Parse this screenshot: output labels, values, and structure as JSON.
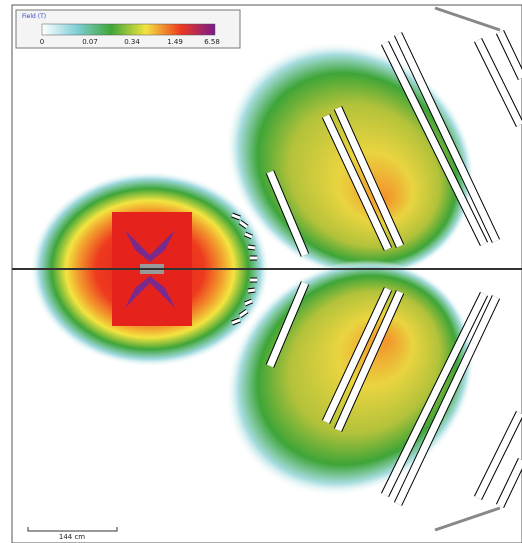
{
  "legend": {
    "title": "Field (T)",
    "ticks": [
      "0",
      "0.07",
      "0.34",
      "1.49",
      "6.58"
    ]
  },
  "scale_bar": "144 cm"
}
